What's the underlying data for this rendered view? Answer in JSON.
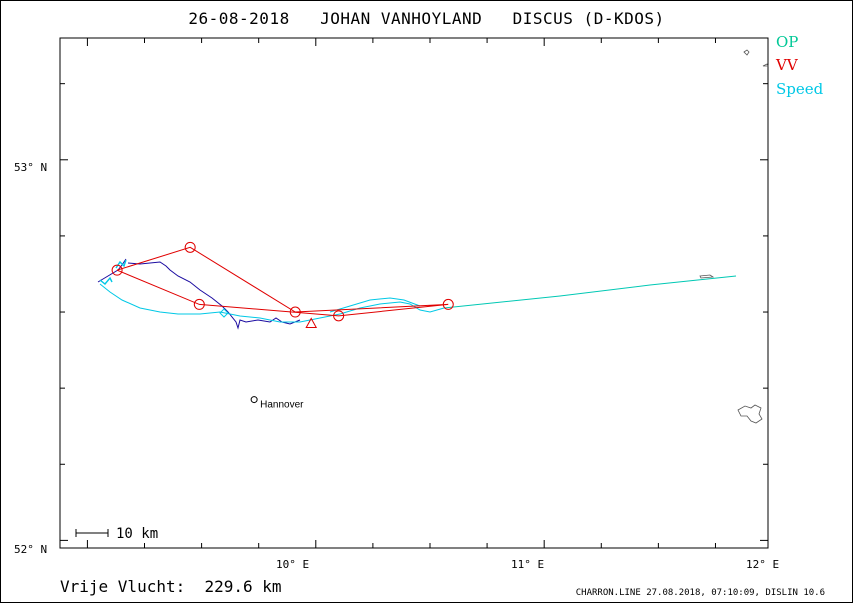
{
  "title": "26-08-2018   JOHAN VANHOYLAND   DISCUS (D-KDOS)",
  "legend": {
    "op": {
      "label": "OP",
      "color": "#00c896"
    },
    "vv": {
      "label": "VV",
      "color": "#e00000"
    },
    "speed": {
      "label": "Speed",
      "color": "#00c8e6"
    }
  },
  "axes": {
    "lat_labels": [
      "53° N",
      "52° N"
    ],
    "lon_labels": [
      "10° E",
      "11° E",
      "12° E"
    ]
  },
  "map": {
    "lon_range": [
      8.88,
      11.98
    ],
    "lat_range": [
      51.98,
      53.32
    ],
    "city": {
      "name": "Hannover",
      "lon": 9.73,
      "lat": 52.37
    },
    "scale_label": "10 km",
    "track_color": "#1a0aa0",
    "glide_color": "#00c8b4"
  },
  "route": {
    "color": "#e00000",
    "points": [
      {
        "lon": 9.13,
        "lat": 52.71
      },
      {
        "lon": 9.45,
        "lat": 52.77
      },
      {
        "lon": 9.91,
        "lat": 52.6
      },
      {
        "lon": 10.58,
        "lat": 52.62
      },
      {
        "lon": 10.1,
        "lat": 52.59
      },
      {
        "lon": 9.49,
        "lat": 52.62
      },
      {
        "lon": 9.13,
        "lat": 52.71
      }
    ],
    "start": {
      "lon": 9.98,
      "lat": 52.57
    }
  },
  "distance": "Vrije Vlucht:  229.6 km",
  "credits": "CHARRON.LINE 27.08.2018, 07:10:09, DISLIN 10.6"
}
